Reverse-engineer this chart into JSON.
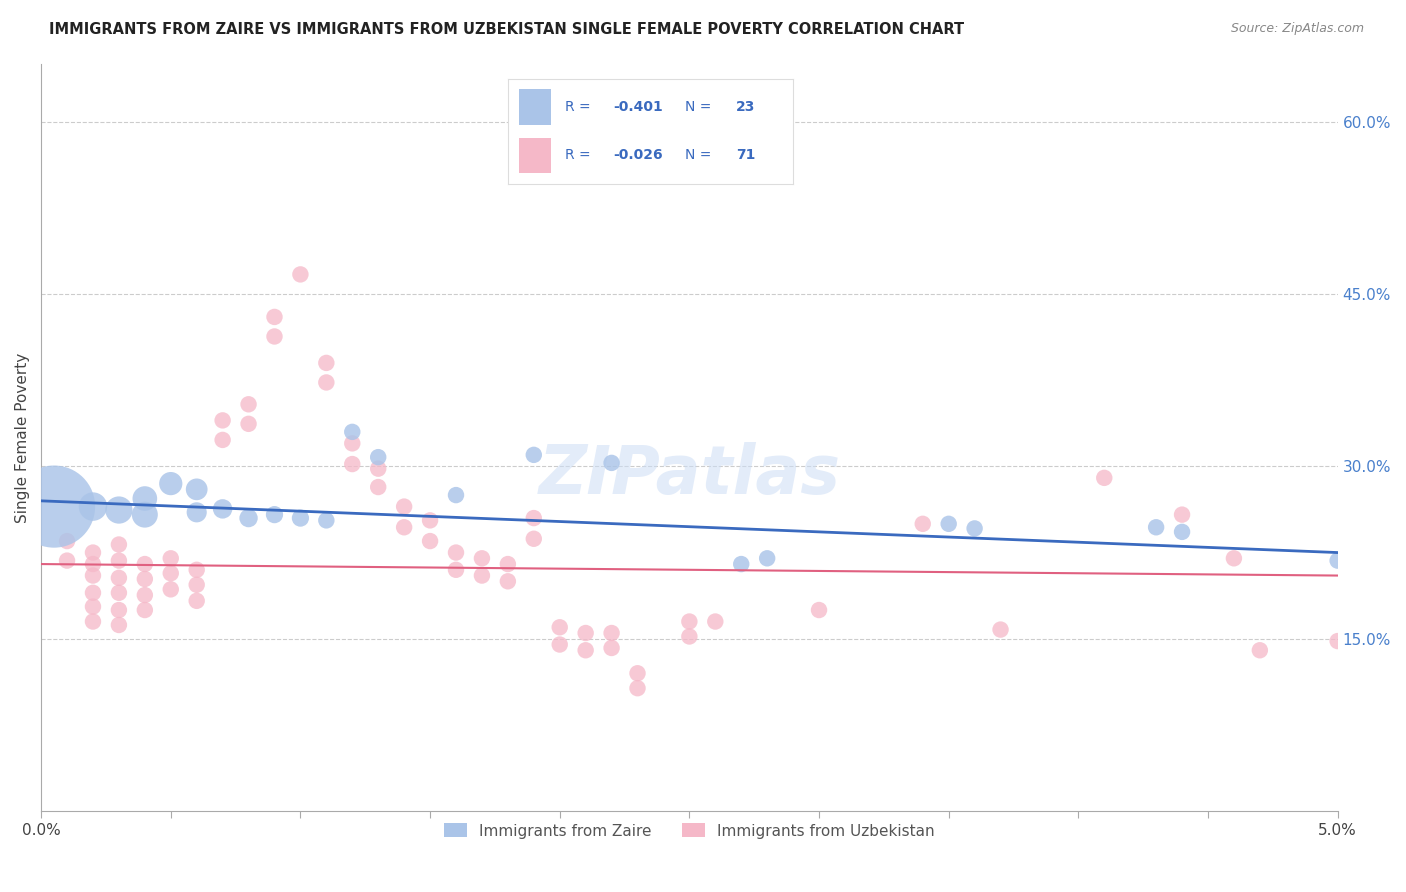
{
  "title": "IMMIGRANTS FROM ZAIRE VS IMMIGRANTS FROM UZBEKISTAN SINGLE FEMALE POVERTY CORRELATION CHART",
  "source": "Source: ZipAtlas.com",
  "ylabel": "Single Female Poverty",
  "right_yticks": [
    "15.0%",
    "30.0%",
    "45.0%",
    "60.0%"
  ],
  "right_ytick_vals": [
    0.15,
    0.3,
    0.45,
    0.6
  ],
  "zaire_color": "#aac4e8",
  "uzbekistan_color": "#f5b8c8",
  "zaire_line_color": "#3a6abf",
  "uzbekistan_line_color": "#e06080",
  "legend_text_color": "#3a6abf",
  "watermark": "ZIPatlas",
  "zaire_points": [
    [
      0.0005,
      0.265,
      500
    ],
    [
      0.002,
      0.265,
      60
    ],
    [
      0.003,
      0.262,
      55
    ],
    [
      0.004,
      0.258,
      50
    ],
    [
      0.004,
      0.272,
      45
    ],
    [
      0.005,
      0.285,
      40
    ],
    [
      0.006,
      0.28,
      35
    ],
    [
      0.006,
      0.26,
      30
    ],
    [
      0.007,
      0.263,
      28
    ],
    [
      0.008,
      0.255,
      25
    ],
    [
      0.009,
      0.258,
      22
    ],
    [
      0.01,
      0.255,
      22
    ],
    [
      0.011,
      0.253,
      20
    ],
    [
      0.012,
      0.33,
      20
    ],
    [
      0.013,
      0.308,
      20
    ],
    [
      0.016,
      0.275,
      20
    ],
    [
      0.019,
      0.31,
      20
    ],
    [
      0.022,
      0.303,
      20
    ],
    [
      0.027,
      0.215,
      20
    ],
    [
      0.028,
      0.22,
      20
    ],
    [
      0.035,
      0.25,
      20
    ],
    [
      0.036,
      0.246,
      20
    ],
    [
      0.043,
      0.247,
      20
    ],
    [
      0.044,
      0.243,
      20
    ],
    [
      0.05,
      0.218,
      20
    ]
  ],
  "uzbekistan_points": [
    [
      0.001,
      0.235,
      20
    ],
    [
      0.001,
      0.218,
      20
    ],
    [
      0.002,
      0.225,
      20
    ],
    [
      0.002,
      0.215,
      20
    ],
    [
      0.002,
      0.205,
      20
    ],
    [
      0.002,
      0.19,
      20
    ],
    [
      0.002,
      0.178,
      20
    ],
    [
      0.002,
      0.165,
      20
    ],
    [
      0.003,
      0.232,
      20
    ],
    [
      0.003,
      0.218,
      20
    ],
    [
      0.003,
      0.203,
      20
    ],
    [
      0.003,
      0.19,
      20
    ],
    [
      0.003,
      0.175,
      20
    ],
    [
      0.003,
      0.162,
      20
    ],
    [
      0.004,
      0.215,
      20
    ],
    [
      0.004,
      0.202,
      20
    ],
    [
      0.004,
      0.188,
      20
    ],
    [
      0.004,
      0.175,
      20
    ],
    [
      0.005,
      0.22,
      20
    ],
    [
      0.005,
      0.207,
      20
    ],
    [
      0.005,
      0.193,
      20
    ],
    [
      0.006,
      0.21,
      20
    ],
    [
      0.006,
      0.197,
      20
    ],
    [
      0.006,
      0.183,
      20
    ],
    [
      0.007,
      0.34,
      20
    ],
    [
      0.007,
      0.323,
      20
    ],
    [
      0.008,
      0.354,
      20
    ],
    [
      0.008,
      0.337,
      20
    ],
    [
      0.009,
      0.43,
      20
    ],
    [
      0.009,
      0.413,
      20
    ],
    [
      0.01,
      0.467,
      20
    ],
    [
      0.011,
      0.39,
      20
    ],
    [
      0.011,
      0.373,
      20
    ],
    [
      0.012,
      0.32,
      20
    ],
    [
      0.012,
      0.302,
      20
    ],
    [
      0.013,
      0.298,
      20
    ],
    [
      0.013,
      0.282,
      20
    ],
    [
      0.014,
      0.265,
      20
    ],
    [
      0.014,
      0.247,
      20
    ],
    [
      0.015,
      0.253,
      20
    ],
    [
      0.015,
      0.235,
      20
    ],
    [
      0.016,
      0.225,
      20
    ],
    [
      0.016,
      0.21,
      20
    ],
    [
      0.017,
      0.22,
      20
    ],
    [
      0.017,
      0.205,
      20
    ],
    [
      0.018,
      0.215,
      20
    ],
    [
      0.018,
      0.2,
      20
    ],
    [
      0.019,
      0.255,
      20
    ],
    [
      0.019,
      0.237,
      20
    ],
    [
      0.02,
      0.16,
      20
    ],
    [
      0.02,
      0.145,
      20
    ],
    [
      0.021,
      0.155,
      20
    ],
    [
      0.021,
      0.14,
      20
    ],
    [
      0.022,
      0.155,
      20
    ],
    [
      0.022,
      0.142,
      20
    ],
    [
      0.023,
      0.12,
      20
    ],
    [
      0.023,
      0.107,
      20
    ],
    [
      0.025,
      0.165,
      20
    ],
    [
      0.025,
      0.152,
      20
    ],
    [
      0.026,
      0.165,
      20
    ],
    [
      0.03,
      0.175,
      20
    ],
    [
      0.034,
      0.25,
      20
    ],
    [
      0.037,
      0.158,
      20
    ],
    [
      0.041,
      0.29,
      20
    ],
    [
      0.044,
      0.258,
      20
    ],
    [
      0.046,
      0.22,
      20
    ],
    [
      0.047,
      0.14,
      20
    ],
    [
      0.05,
      0.148,
      20
    ]
  ],
  "xlim": [
    0.0,
    0.05
  ],
  "ylim": [
    0.0,
    0.65
  ],
  "x_ticks_minor": [
    0.005,
    0.01,
    0.015,
    0.02,
    0.025,
    0.03,
    0.035,
    0.04,
    0.045
  ],
  "zaire_trend": [
    0.27,
    -0.9
  ],
  "uzbekistan_trend": [
    0.215,
    -0.2
  ]
}
